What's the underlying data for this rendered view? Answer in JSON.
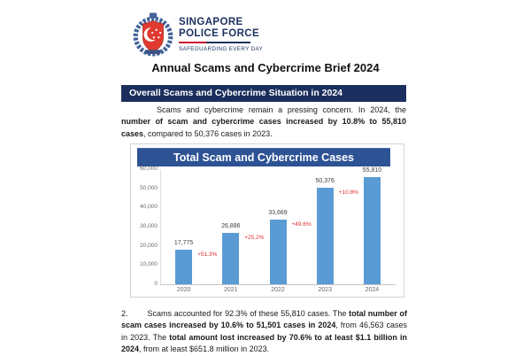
{
  "logo": {
    "org_line1": "SINGAPORE",
    "org_line2": "POLICE FORCE",
    "tagline": "SAFEGUARDING EVERY DAY"
  },
  "doc": {
    "title": "Annual Scams and Cybercrime Brief 2024",
    "section_heading": "Overall Scams and Cybercrime Situation in 2024"
  },
  "paragraphs": {
    "p1": {
      "segments": [
        {
          "t": "Scams and cybercrime remain a pressing concern. In 2024, the ",
          "b": false
        },
        {
          "t": "number of scam and cybercrime cases increased by 10.8% to 55,810 cases",
          "b": true
        },
        {
          "t": ", compared to 50,376 cases in 2023.",
          "b": false
        }
      ]
    },
    "p2": {
      "number": "2.",
      "segments": [
        {
          "t": "Scams accounted for 92.3% of these 55,810 cases. The ",
          "b": false
        },
        {
          "t": "total number of scam cases increased by 10.6% to 51,501 cases in 2024",
          "b": true
        },
        {
          "t": ", from 46,563 cases in 2023. The ",
          "b": false
        },
        {
          "t": "total amount lost increased by 70.6% to at least $1.1 billion in 2024",
          "b": true
        },
        {
          "t": ", from at least $651.8 million in 2023.",
          "b": false
        }
      ]
    }
  },
  "chart_data": {
    "type": "bar",
    "title": "Total Scam and Cybercrime Cases",
    "categories": [
      "2020",
      "2021",
      "2022",
      "2023",
      "2024"
    ],
    "values": [
      17775,
      26886,
      33669,
      50376,
      55810
    ],
    "value_labels": [
      "17,775",
      "26,886",
      "33,669",
      "50,376",
      "55,810"
    ],
    "growth_labels": [
      "+51.3%",
      "+25.2%",
      "+49.6%",
      "+10.8%"
    ],
    "xlabel": "",
    "ylabel": "",
    "ylim": [
      0,
      60000
    ],
    "ytick_step": 10000,
    "ytick_labels": [
      "0",
      "10,000",
      "20,000",
      "30,000",
      "40,000",
      "50,000",
      "60,000"
    ],
    "grid": false,
    "legend": "none",
    "bar_color": "#5B9BD5",
    "growth_label_color": "#E02B2B"
  },
  "colors": {
    "banner_navy": "#1B2F5E",
    "chart_header_navy": "#2E5394",
    "logo_navy": "#1D3160",
    "logo_red": "#C8102E",
    "bar_blue": "#5B9BD5",
    "growth_red": "#E02B2B"
  }
}
